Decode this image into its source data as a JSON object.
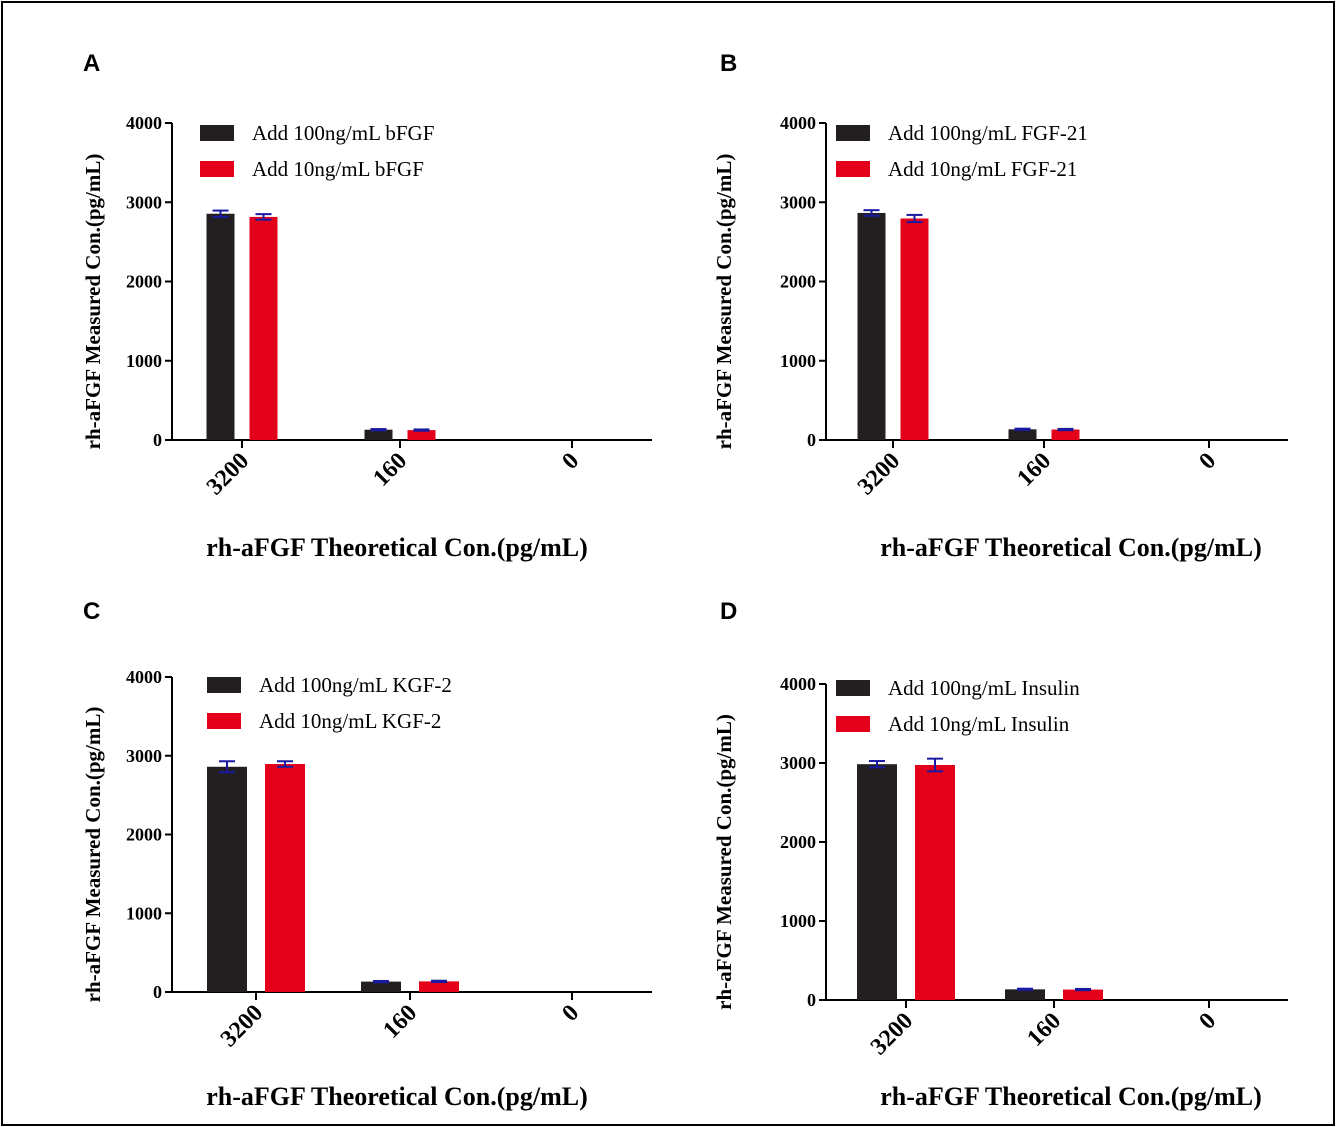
{
  "colors": {
    "series1": "#231f20",
    "series2": "#e3001b",
    "error": "#1a1aa0",
    "axis": "#000000"
  },
  "chart_data": [
    {
      "panel": "A",
      "type": "bar",
      "categories": [
        "3200",
        "160",
        "0"
      ],
      "series": [
        {
          "name": "Add 100ng/mL bFGF",
          "values": [
            2855,
            130,
            0
          ],
          "errors": [
            40,
            8,
            0
          ]
        },
        {
          "name": "Add 10ng/mL bFGF",
          "values": [
            2815,
            125,
            0
          ],
          "errors": [
            35,
            8,
            0
          ]
        }
      ],
      "xlabel": "rh-aFGF Theoretical Con.(pg/mL)",
      "ylabel": "rh-aFGF Measured Con.(pg/mL)",
      "ylim": [
        0,
        4000
      ],
      "yticks": [
        "0",
        "1000",
        "2000",
        "3000",
        "4000"
      ],
      "legend": "top-left"
    },
    {
      "panel": "B",
      "type": "bar",
      "categories": [
        "3200",
        "160",
        "0"
      ],
      "series": [
        {
          "name": "Add 100ng/mL FGF-21",
          "values": [
            2865,
            135,
            0
          ],
          "errors": [
            35,
            8,
            0
          ]
        },
        {
          "name": "Add 10ng/mL FGF-21",
          "values": [
            2795,
            132,
            0
          ],
          "errors": [
            45,
            8,
            0
          ]
        }
      ],
      "xlabel": "rh-aFGF Theoretical Con.(pg/mL)",
      "ylabel": "rh-aFGF Measured Con.(pg/mL)",
      "ylim": [
        0,
        4000
      ],
      "yticks": [
        "0",
        "1000",
        "2000",
        "3000",
        "4000"
      ],
      "legend": "top-left"
    },
    {
      "panel": "C",
      "type": "bar",
      "categories": [
        "3200",
        "160",
        "0"
      ],
      "series": [
        {
          "name": "Add 100ng/mL KGF-2",
          "values": [
            2860,
            132,
            0
          ],
          "errors": [
            70,
            8,
            0
          ]
        },
        {
          "name": "Add 10ng/mL KGF-2",
          "values": [
            2895,
            135,
            0
          ],
          "errors": [
            35,
            8,
            0
          ]
        }
      ],
      "xlabel": "rh-aFGF Theoretical Con.(pg/mL)",
      "ylabel": "rh-aFGF Measured Con.(pg/mL)",
      "ylim": [
        0,
        4000
      ],
      "yticks": [
        "0",
        "1000",
        "2000",
        "3000",
        "4000"
      ],
      "legend": "top-left"
    },
    {
      "panel": "D",
      "type": "bar",
      "categories": [
        "3200",
        "160",
        "0"
      ],
      "series": [
        {
          "name": "Add 100ng/mL Insulin",
          "values": [
            2985,
            135,
            0
          ],
          "errors": [
            40,
            8,
            0
          ]
        },
        {
          "name": "Add 10ng/mL Insulin",
          "values": [
            2975,
            132,
            0
          ],
          "errors": [
            80,
            8,
            0
          ]
        }
      ],
      "xlabel": "rh-aFGF Theoretical Con.(pg/mL)",
      "ylabel": "rh-aFGF Measured Con.(pg/mL)",
      "ylim": [
        0,
        4000
      ],
      "yticks": [
        "0",
        "1000",
        "2000",
        "3000",
        "4000"
      ],
      "legend": "top-left"
    }
  ]
}
